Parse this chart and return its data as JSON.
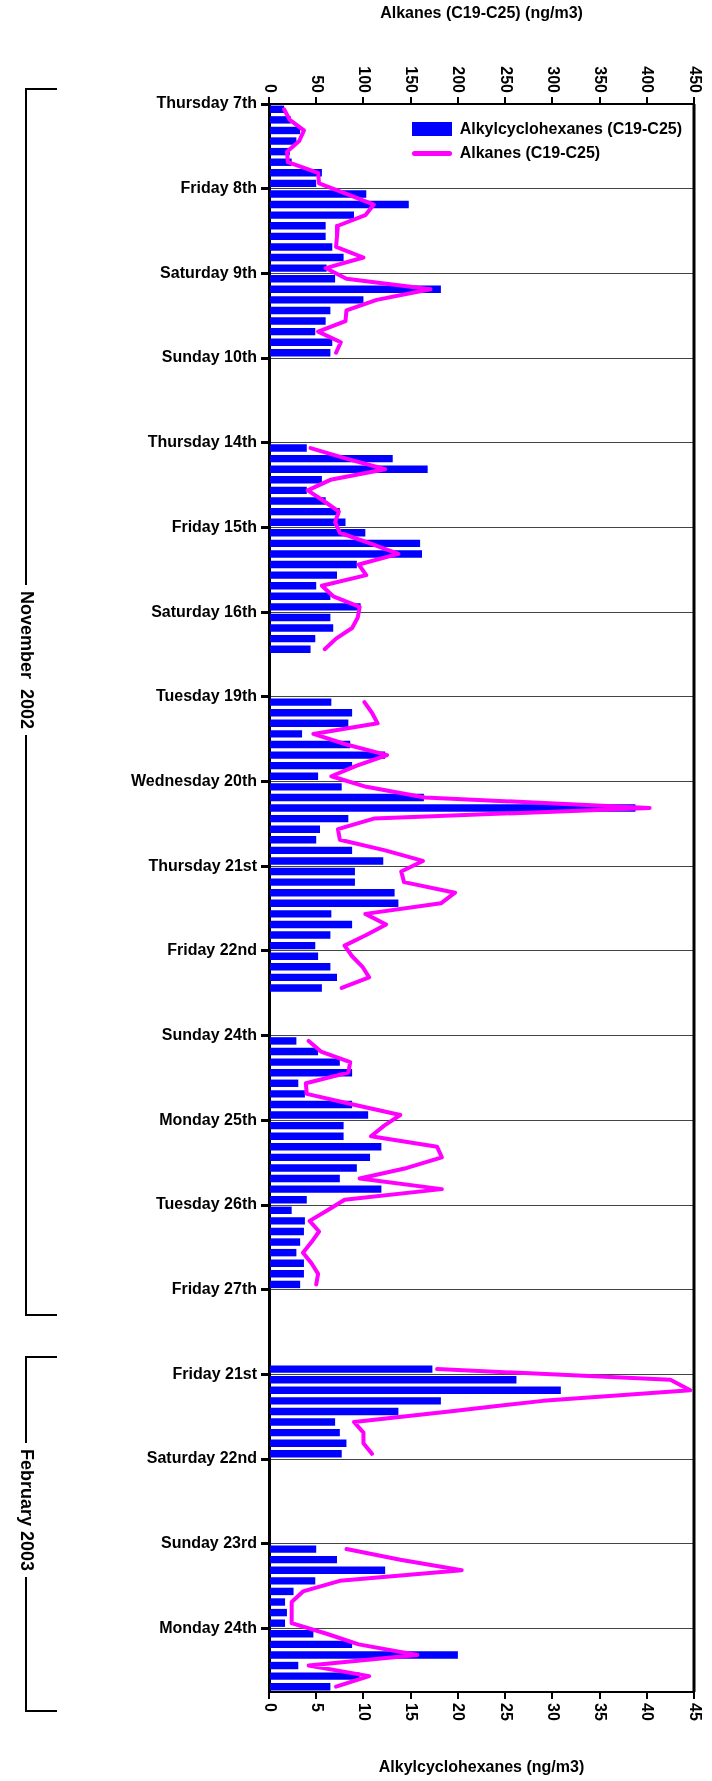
{
  "chart_data": {
    "type": "bar",
    "orientation": "horizontal",
    "xlabel": "Alkylcyclohexanes (ng/m3)",
    "x2label": "Alkanes (C19-C25) (ng/m3)",
    "categories": [
      "Thursday 7th",
      null,
      null,
      null,
      null,
      null,
      null,
      null,
      "Friday 8th",
      null,
      null,
      null,
      null,
      null,
      null,
      null,
      "Saturday 9th",
      null,
      null,
      null,
      null,
      null,
      null,
      null,
      "Sunday 10th",
      null,
      null,
      null,
      null,
      null,
      null,
      null,
      "Thursday 14th",
      null,
      null,
      null,
      null,
      null,
      null,
      null,
      "Friday 15th",
      null,
      null,
      null,
      null,
      null,
      null,
      null,
      "Saturday 16th",
      null,
      null,
      null,
      null,
      null,
      null,
      null,
      "Tuesday 19th",
      null,
      null,
      null,
      null,
      null,
      null,
      null,
      "Wednesday 20th",
      null,
      null,
      null,
      null,
      null,
      null,
      null,
      "Thursday 21st",
      null,
      null,
      null,
      null,
      null,
      null,
      null,
      "Friday 22nd",
      null,
      null,
      null,
      null,
      null,
      null,
      null,
      "Sunday 24th",
      null,
      null,
      null,
      null,
      null,
      null,
      null,
      "Monday 25th",
      null,
      null,
      null,
      null,
      null,
      null,
      null,
      "Tuesday 26th",
      null,
      null,
      null,
      null,
      null,
      null,
      null,
      "Friday 27th",
      null,
      null,
      null,
      null,
      null,
      null,
      null,
      "Friday 21st",
      null,
      null,
      null,
      null,
      null,
      null,
      null,
      "Saturday 22nd",
      null,
      null,
      null,
      null,
      null,
      null,
      null,
      "Sunday 23rd",
      null,
      null,
      null,
      null,
      null,
      null,
      null,
      "Monday 24th",
      null,
      null,
      null,
      null,
      null
    ],
    "series": [
      {
        "name": "Alkylcyclohexanes (C19-C25)",
        "color": "#0000ff",
        "values": [
          1.6,
          2.3,
          3.3,
          2.9,
          2.2,
          2.4,
          5.6,
          5.0,
          10.3,
          14.8,
          9.0,
          6.0,
          6.0,
          6.7,
          7.9,
          6.1,
          7.0,
          18.2,
          10.0,
          6.5,
          6.0,
          4.9,
          6.7,
          6.5,
          null,
          null,
          null,
          null,
          null,
          null,
          null,
          null,
          4.0,
          13.1,
          16.8,
          5.6,
          4.0,
          6.0,
          7.5,
          8.1,
          10.2,
          16.0,
          16.2,
          9.3,
          7.2,
          5.0,
          6.5,
          9.7,
          6.5,
          6.8,
          4.9,
          4.4,
          null,
          null,
          null,
          null,
          6.6,
          8.8,
          8.4,
          3.5,
          8.6,
          12.3,
          8.8,
          5.2,
          7.7,
          16.4,
          38.8,
          8.4,
          5.4,
          5.0,
          8.8,
          12.1,
          9.1,
          9.1,
          13.3,
          13.7,
          6.6,
          8.8,
          6.5,
          4.9,
          5.2,
          6.5,
          7.2,
          5.6,
          null,
          null,
          null,
          null,
          2.9,
          5.2,
          7.5,
          8.8,
          3.1,
          3.8,
          8.8,
          10.5,
          7.9,
          7.9,
          11.9,
          10.7,
          9.3,
          7.5,
          11.9,
          4.0,
          2.4,
          3.8,
          3.7,
          3.3,
          2.9,
          3.7,
          3.7,
          3.3,
          null,
          null,
          null,
          null,
          null,
          null,
          null,
          17.3,
          26.2,
          30.9,
          18.2,
          13.7,
          7.0,
          7.5,
          8.2,
          7.7,
          null,
          null,
          null,
          null,
          null,
          null,
          null,
          null,
          5.0,
          7.2,
          12.3,
          4.9,
          2.6,
          1.7,
          1.9,
          1.7,
          4.7,
          8.8,
          20.0,
          3.1,
          9.6,
          6.5
        ]
      },
      {
        "name": "Alkanes (C19-C25)",
        "type": "line",
        "axis": "x2",
        "color": "#ff00ff",
        "values": [
          16,
          22,
          37,
          32,
          19,
          20,
          52,
          53,
          82,
          111,
          102,
          73,
          72,
          71,
          100,
          60,
          82,
          171,
          114,
          82,
          81,
          52,
          76,
          71,
          null,
          null,
          null,
          null,
          null,
          null,
          null,
          null,
          44,
          82,
          123,
          65,
          41,
          58,
          74,
          70,
          75,
          107,
          137,
          95,
          103,
          56,
          68,
          96,
          94,
          88,
          71,
          59,
          null,
          null,
          null,
          null,
          101,
          109,
          115,
          47,
          82,
          125,
          93,
          66,
          103,
          165,
          403,
          111,
          73,
          75,
          123,
          163,
          140,
          143,
          197,
          182,
          102,
          124,
          103,
          80,
          88,
          99,
          106,
          77,
          null,
          null,
          null,
          null,
          42,
          55,
          86,
          84,
          39,
          40,
          89,
          139,
          122,
          108,
          178,
          183,
          146,
          96,
          183,
          80,
          62,
          43,
          53,
          45,
          36,
          45,
          52,
          50,
          null,
          null,
          null,
          null,
          null,
          null,
          null,
          178,
          425,
          446,
          290,
          191,
          90,
          100,
          100,
          109,
          null,
          null,
          null,
          null,
          null,
          null,
          null,
          null,
          82,
          139,
          204,
          75,
          36,
          24,
          24,
          24,
          61,
          95,
          157,
          42,
          106,
          71
        ]
      }
    ],
    "xlim": [
      0,
      45
    ],
    "xticks": [
      0,
      5,
      10,
      15,
      20,
      25,
      30,
      35,
      40,
      45
    ],
    "x2lim": [
      0,
      450
    ],
    "x2ticks": [
      0,
      50,
      100,
      150,
      200,
      250,
      300,
      350,
      400,
      450
    ],
    "annotations": [
      "November  2002",
      "February 2003"
    ],
    "grid": "y",
    "legend": "top right",
    "marker": "none",
    "line_style": "solid"
  }
}
